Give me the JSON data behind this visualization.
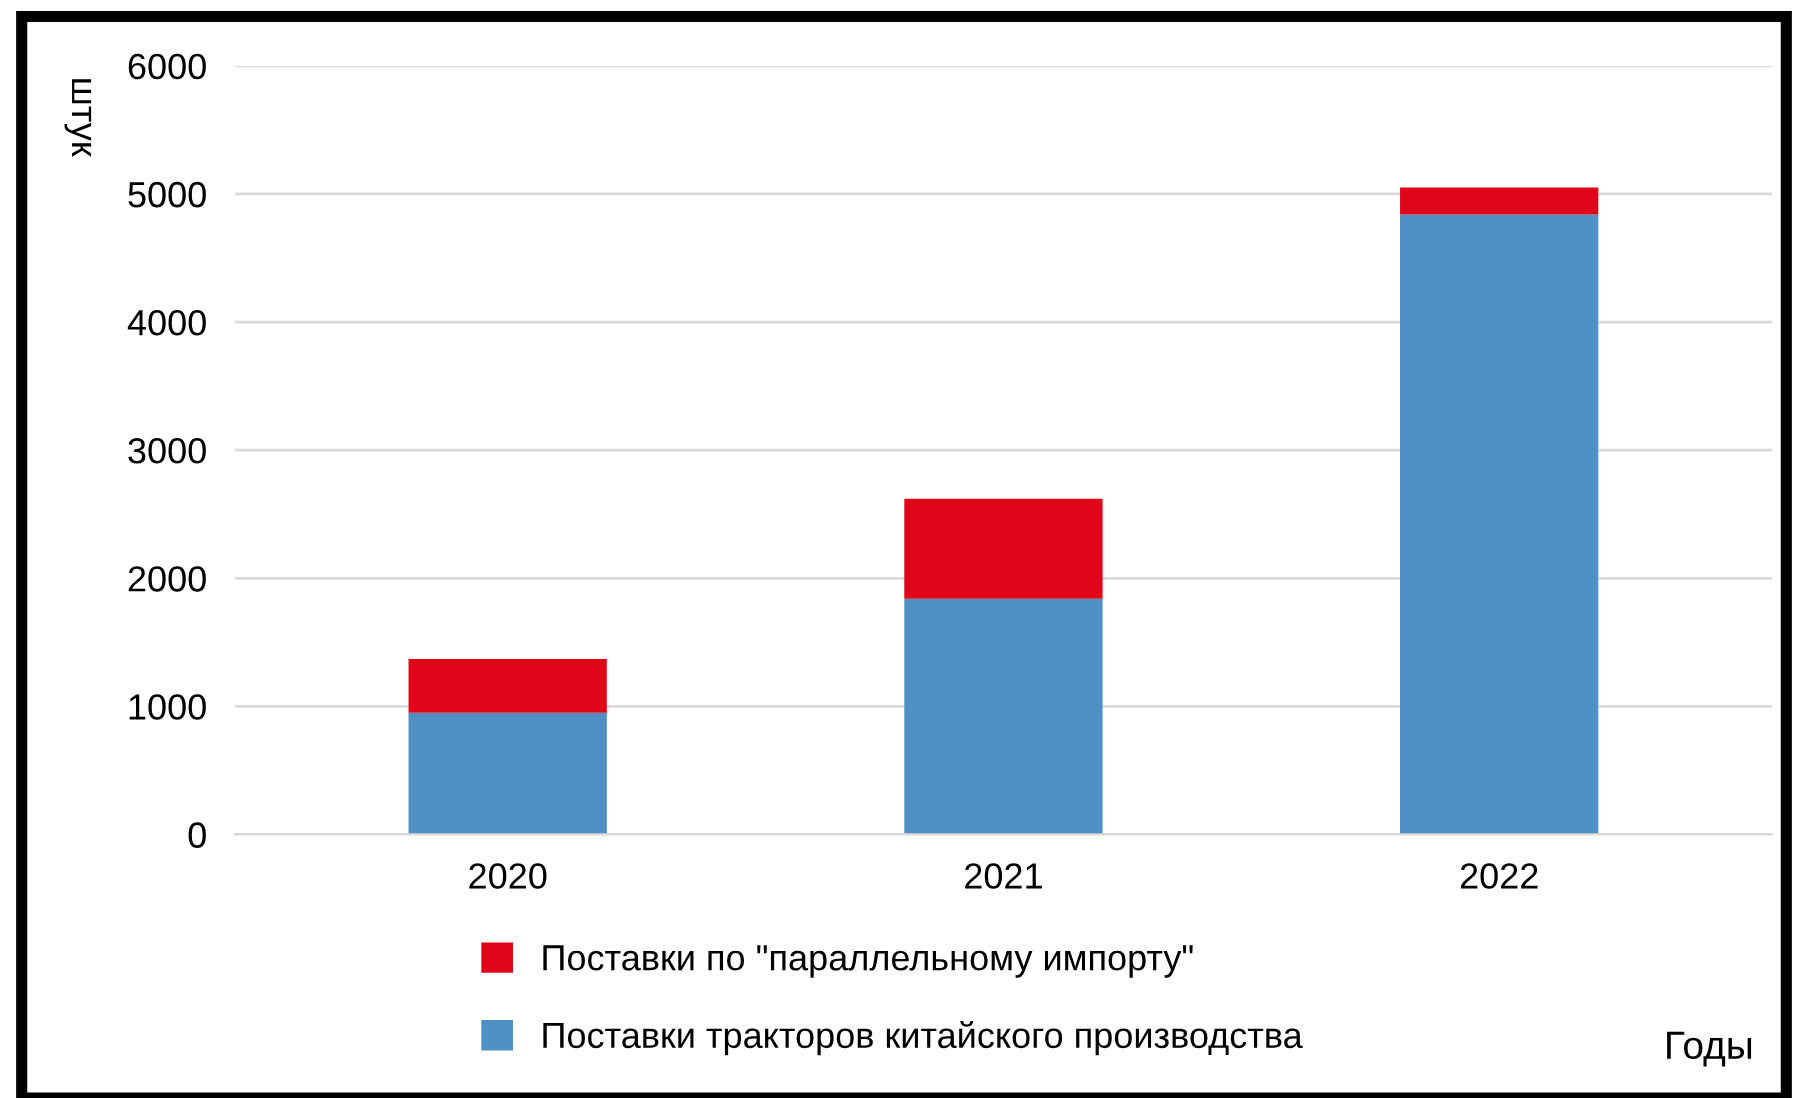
{
  "chart_data": {
    "type": "bar",
    "stacked": true,
    "ylabel": "штук",
    "xlabel": "Годы",
    "categories": [
      "2020",
      "2021",
      "2022"
    ],
    "series": [
      {
        "name": "Поставки тракторов китайского производства",
        "color": "#4f8fc4",
        "values": [
          950,
          1840,
          4840
        ]
      },
      {
        "name": "Поставки по \"параллельному импорту\"",
        "color": "#e0061a",
        "values": [
          420,
          780,
          210
        ]
      }
    ],
    "ylim": [
      0,
      6000
    ],
    "yticks": [
      0,
      1000,
      2000,
      3000,
      4000,
      5000,
      6000
    ],
    "grid": "y",
    "legend": "bottom"
  }
}
